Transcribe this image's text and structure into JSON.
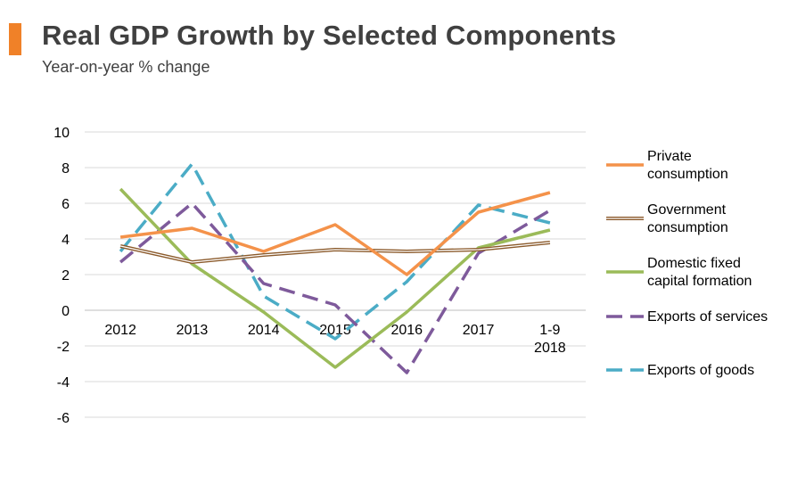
{
  "header": {
    "title": "Real GDP Growth by Selected Components",
    "subtitle": "Year-on-year % change",
    "accent_color": "#F08128"
  },
  "chart_data": {
    "type": "line",
    "title": "Real GDP Growth by Selected Components",
    "subtitle": "Year-on-year % change",
    "xlabel": "",
    "ylabel": "",
    "categories": [
      "2012",
      "2013",
      "2014",
      "2015",
      "2016",
      "2017",
      "1-9 2018"
    ],
    "ylim": [
      -6,
      10
    ],
    "yticks": [
      -6,
      -4,
      -2,
      0,
      2,
      4,
      6,
      8,
      10
    ],
    "grid": true,
    "legend_position": "right",
    "series": [
      {
        "name": "Private consumption",
        "label_lines": [
          "Private",
          "consumption"
        ],
        "values": [
          4.1,
          4.6,
          3.3,
          4.8,
          2.0,
          5.5,
          6.6
        ],
        "color": "#F4924A",
        "style": "solid"
      },
      {
        "name": "Government consumption",
        "label_lines": [
          "Government",
          "consumption"
        ],
        "values": [
          3.6,
          2.7,
          3.1,
          3.4,
          3.3,
          3.4,
          3.8
        ],
        "color": "#8B5A2B",
        "style": "double"
      },
      {
        "name": "Domestic fixed capital formation",
        "label_lines": [
          "Domestic fixed",
          "capital formation"
        ],
        "values": [
          6.8,
          2.6,
          -0.1,
          -3.2,
          -0.1,
          3.5,
          4.5
        ],
        "color": "#9BBB59",
        "style": "solid"
      },
      {
        "name": "Exports of services",
        "label_lines": [
          "Exports of services"
        ],
        "values": [
          2.7,
          6.0,
          1.5,
          0.3,
          -3.5,
          3.2,
          5.6
        ],
        "color": "#7E5A9B",
        "style": "dashed"
      },
      {
        "name": "Exports of goods",
        "label_lines": [
          "Exports of goods"
        ],
        "values": [
          3.3,
          8.2,
          0.8,
          -1.6,
          1.6,
          5.9,
          4.9
        ],
        "color": "#4BACC6",
        "style": "dashed"
      }
    ]
  }
}
